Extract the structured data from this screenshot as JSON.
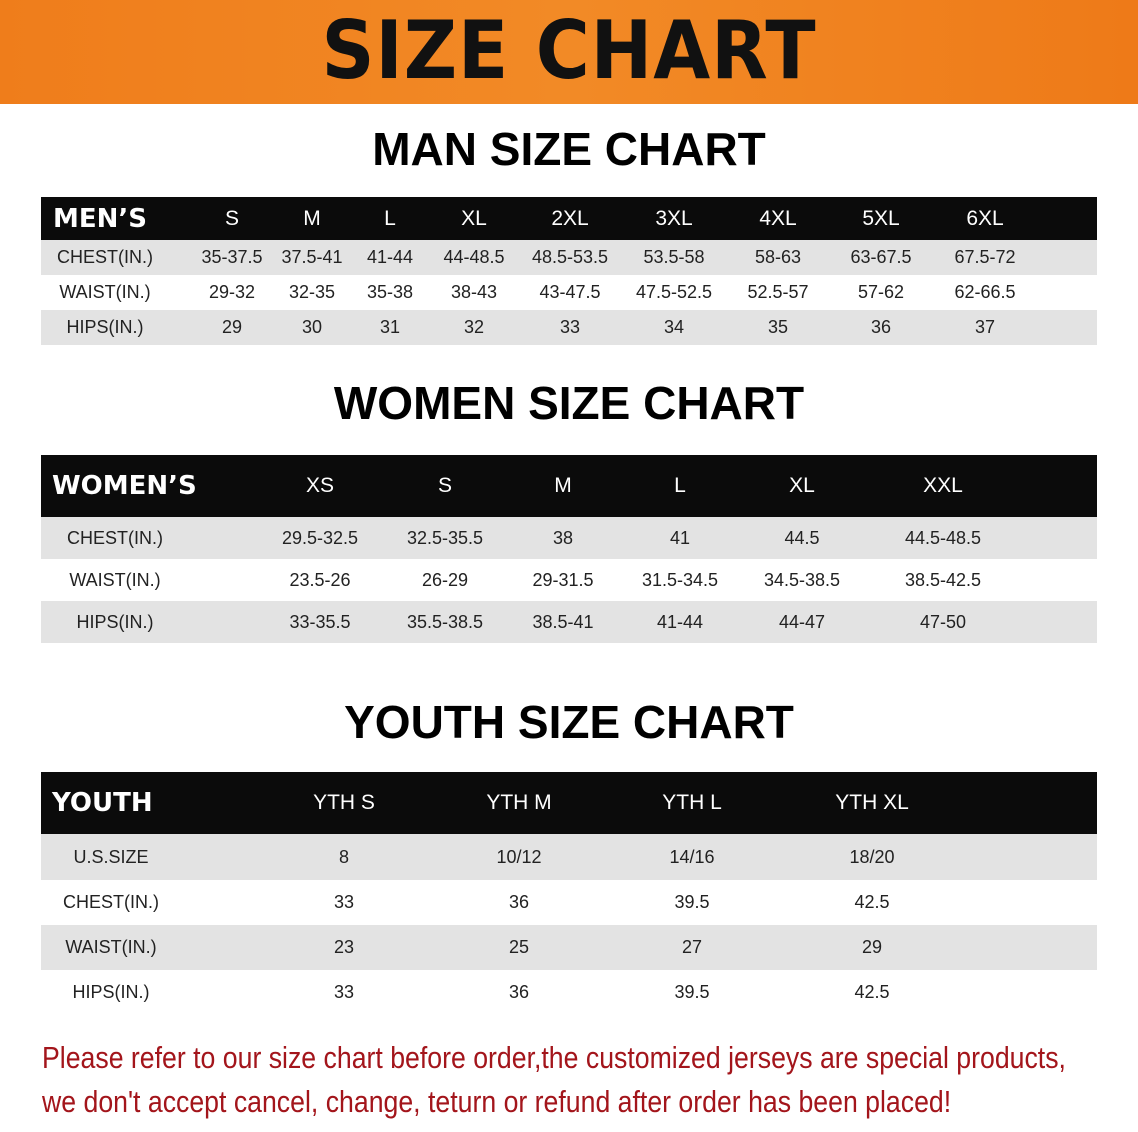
{
  "banner_title": "SIZE CHART",
  "men": {
    "title": "MAN SIZE CHART",
    "header": [
      "MEN’S",
      "S",
      "M",
      "L",
      "XL",
      "2XL",
      "3XL",
      "4XL",
      "5XL",
      "6XL"
    ],
    "rows": [
      [
        "CHEST(IN.)",
        "35-37.5",
        "37.5-41",
        "41-44",
        "44-48.5",
        "48.5-53.5",
        "53.5-58",
        "58-63",
        "63-67.5",
        "67.5-72"
      ],
      [
        "WAIST(IN.)",
        "29-32",
        "32-35",
        "35-38",
        "38-43",
        "43-47.5",
        "47.5-52.5",
        "52.5-57",
        "57-62",
        "62-66.5"
      ],
      [
        "HIPS(IN.)",
        "29",
        "30",
        "31",
        "32",
        "33",
        "34",
        "35",
        "36",
        "37"
      ]
    ]
  },
  "women": {
    "title": "WOMEN SIZE CHART",
    "header": [
      "WOMEN’S",
      "XS",
      "S",
      "M",
      "L",
      "XL",
      "XXL"
    ],
    "rows": [
      [
        "CHEST(IN.)",
        "29.5-32.5",
        "32.5-35.5",
        "38",
        "41",
        "44.5",
        "44.5-48.5"
      ],
      [
        "WAIST(IN.)",
        "23.5-26",
        "26-29",
        "29-31.5",
        "31.5-34.5",
        "34.5-38.5",
        "38.5-42.5"
      ],
      [
        "HIPS(IN.)",
        "33-35.5",
        "35.5-38.5",
        "38.5-41",
        "41-44",
        "44-47",
        "47-50"
      ]
    ]
  },
  "youth": {
    "title": "YOUTH SIZE CHART",
    "header": [
      "YOUTH",
      "YTH S",
      "YTH M",
      "YTH L",
      "YTH XL"
    ],
    "rows": [
      [
        "U.S.SIZE",
        "8",
        "10/12",
        "14/16",
        "18/20"
      ],
      [
        "CHEST(IN.)",
        "33",
        "36",
        "39.5",
        "42.5"
      ],
      [
        "WAIST(IN.)",
        "23",
        "25",
        "27",
        "29"
      ],
      [
        "HIPS(IN.)",
        "33",
        "36",
        "39.5",
        "42.5"
      ]
    ]
  },
  "note": {
    "line1": "Please refer to our size chart before order,the customized jerseys are special products,",
    "line2": "we don't accept cancel, change, teturn or refund after order has been placed!"
  },
  "colors": {
    "banner": "#ef7d1b",
    "header_row": "#0b0b0b",
    "stripe": "#e3e3e3",
    "note": "#a3151b"
  }
}
